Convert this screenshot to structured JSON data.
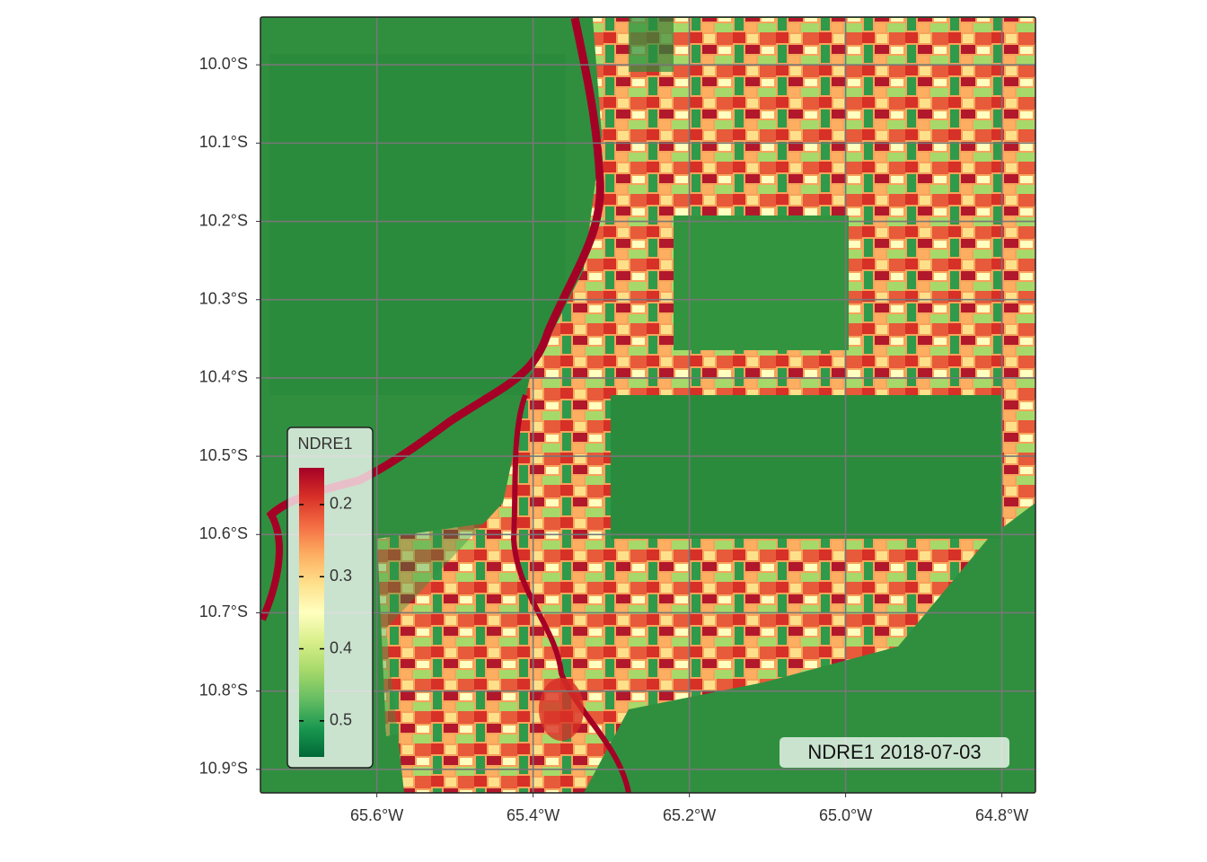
{
  "map": {
    "x_axis": {
      "lim": [
        -65.749,
        -64.757
      ],
      "ticks": [
        {
          "value": -65.6,
          "label": "65.6°W"
        },
        {
          "value": -65.4,
          "label": "65.4°W"
        },
        {
          "value": -65.2,
          "label": "65.2°W"
        },
        {
          "value": -65.0,
          "label": "65.0°W"
        },
        {
          "value": -64.8,
          "label": "64.8°W"
        }
      ]
    },
    "y_axis": {
      "lim": [
        -10.93,
        -9.939
      ],
      "ticks": [
        {
          "value": -10.0,
          "label": "10.0°S"
        },
        {
          "value": -10.1,
          "label": "10.1°S"
        },
        {
          "value": -10.2,
          "label": "10.2°S"
        },
        {
          "value": -10.3,
          "label": "10.3°S"
        },
        {
          "value": -10.4,
          "label": "10.4°S"
        },
        {
          "value": -10.5,
          "label": "10.5°S"
        },
        {
          "value": -10.6,
          "label": "10.6°S"
        },
        {
          "value": -10.7,
          "label": "10.7°S"
        },
        {
          "value": -10.8,
          "label": "10.8°S"
        },
        {
          "value": -10.9,
          "label": "10.9°S"
        }
      ]
    },
    "legend": {
      "title": "NDRE1",
      "lim": [
        0.149,
        0.55
      ],
      "ticks": [
        0.2,
        0.3,
        0.4,
        0.5
      ],
      "colors": [
        "#a50026",
        "#d73027",
        "#f46d43",
        "#fdae61",
        "#fee08b",
        "#ffffbf",
        "#d9ef8b",
        "#a6d96a",
        "#66bd63",
        "#1a9850",
        "#006837"
      ]
    },
    "label": "NDRE1 2018-07-03",
    "grid": true
  }
}
